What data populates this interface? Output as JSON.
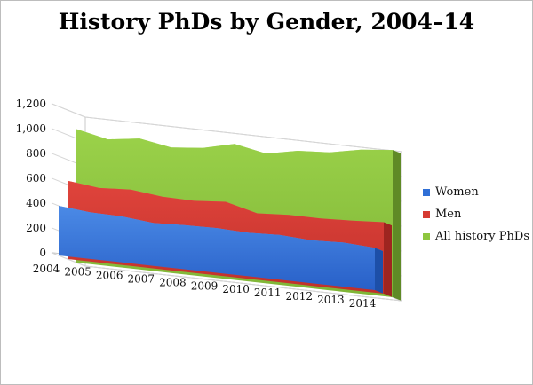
{
  "chart_data": {
    "type": "area",
    "title": "History PhDs by Gender, 2004–14",
    "categories": [
      "2004",
      "2005",
      "2006",
      "2007",
      "2008",
      "2009",
      "2010",
      "2011",
      "2012",
      "2013",
      "2014"
    ],
    "y_ticks": [
      "0",
      "200",
      "400",
      "600",
      "800",
      "1,000",
      "1,200"
    ],
    "ylim": [
      0,
      1200
    ],
    "series": [
      {
        "name": "Women",
        "color": "#2f6fd6",
        "values": [
          400,
          375,
          370,
          345,
          355,
          360,
          350,
          360,
          345,
          355,
          340
        ]
      },
      {
        "name": "Men",
        "color": "#d63a32",
        "values": [
          630,
          600,
          615,
          585,
          580,
          600,
          535,
          550,
          550,
          560,
          575
        ]
      },
      {
        "name": "All history PhDs",
        "color": "#8ec63f",
        "values": [
          1075,
          1020,
          1055,
          1010,
          1035,
          1095,
          1045,
          1095,
          1110,
          1160,
          1185
        ]
      }
    ],
    "legend_position": "right",
    "grid": true
  }
}
